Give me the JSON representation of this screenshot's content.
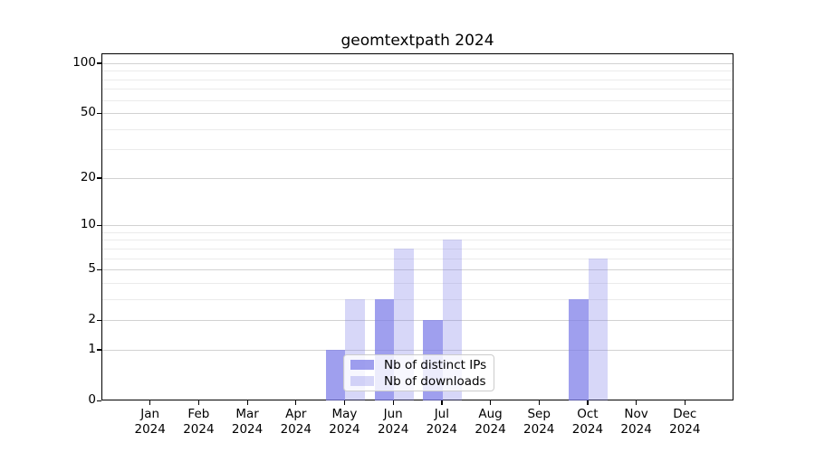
{
  "chart_data": {
    "type": "bar",
    "title": "geomtextpath 2024",
    "categories": [
      "Jan",
      "Feb",
      "Mar",
      "Apr",
      "May",
      "Jun",
      "Jul",
      "Aug",
      "Sep",
      "Oct",
      "Nov",
      "Dec"
    ],
    "x_year_label": "2024",
    "series": [
      {
        "name": "Nb of distinct IPs",
        "color": "rgba(122,122,232,0.72)",
        "values": [
          0,
          0,
          0,
          0,
          1,
          3,
          2,
          0,
          0,
          3,
          0,
          0
        ]
      },
      {
        "name": "Nb of downloads",
        "color": "rgba(122,122,232,0.30)",
        "values": [
          0,
          0,
          0,
          0,
          3,
          7,
          8,
          0,
          0,
          6,
          0,
          0
        ]
      }
    ],
    "xlabel": "",
    "ylabel": "",
    "y_axis": {
      "scale": "log10(1+x)",
      "major_ticks": [
        0,
        1,
        2,
        5,
        10,
        20,
        50,
        100
      ],
      "minor_gridlines": [
        3,
        4,
        6,
        7,
        8,
        9,
        30,
        40,
        60,
        70,
        80,
        90
      ],
      "ylim": [
        0,
        115
      ]
    },
    "grid": true,
    "legend": {
      "position": "lower center inside"
    }
  },
  "colors": {
    "grid_major": "#d2d2d2",
    "grid_minor": "#ebebeb",
    "axis": "#000000",
    "legend_border": "#cccccc",
    "legend_bg": "rgba(255,255,255,0.8)",
    "text": "#000000"
  }
}
